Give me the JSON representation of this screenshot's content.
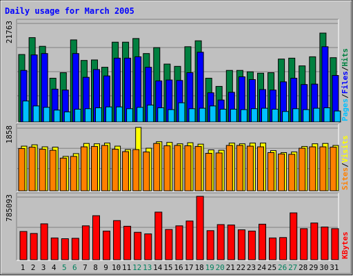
{
  "chart_data": {
    "type": "bar",
    "title": "Daily usage for March 2005",
    "categories": [
      "1",
      "2",
      "3",
      "4",
      "5",
      "6",
      "7",
      "8",
      "9",
      "10",
      "11",
      "12",
      "13",
      "14",
      "15",
      "16",
      "17",
      "18",
      "19",
      "20",
      "21",
      "22",
      "23",
      "24",
      "25",
      "26",
      "27",
      "28",
      "29",
      "30",
      "31"
    ],
    "weekend_days": [
      "5",
      "6",
      "12",
      "13",
      "19",
      "20",
      "26",
      "27"
    ],
    "panels": [
      {
        "id": "top",
        "y_max_label": "21763",
        "ylim": [
          0,
          21763
        ],
        "legend": [
          "Pages",
          "/",
          "Files",
          "/",
          "Hits"
        ],
        "series": [
          {
            "name": "Hits",
            "color": "#008040",
            "values": [
              14800,
              18500,
              16600,
              9600,
              10800,
              18000,
              13500,
              13600,
              12000,
              17500,
              17500,
              18300,
              15000,
              16300,
              12700,
              12200,
              16500,
              17800,
              9600,
              7800,
              11300,
              11300,
              11000,
              10700,
              10800,
              13800,
              14000,
              12300,
              14300,
              19500,
              14100
            ]
          },
          {
            "name": "Files",
            "color": "#0000ff",
            "values": [
              11300,
              14700,
              15000,
              7200,
              7000,
              15000,
              9800,
              11500,
              10100,
              14000,
              14000,
              14300,
              12000,
              9000,
              9200,
              9100,
              10800,
              15300,
              6400,
              4800,
              6500,
              9900,
              9300,
              7100,
              7000,
              8800,
              9600,
              8200,
              8300,
              16500,
              10200
            ]
          },
          {
            "name": "Pages",
            "color": "#00c0ff",
            "values": [
              4600,
              3500,
              3200,
              2600,
              2200,
              2800,
              2900,
              3100,
              3300,
              3300,
              2900,
              3200,
              3700,
              3100,
              2700,
              4200,
              2900,
              3000,
              3500,
              2800,
              2800,
              2700,
              2900,
              3000,
              2800,
              2300,
              2900,
              2700,
              3000,
              3100,
              2400
            ]
          }
        ]
      },
      {
        "id": "middle",
        "y_max_label": "1858",
        "ylim": [
          0,
          1858
        ],
        "legend": [
          "Sites",
          "/",
          "Visits"
        ],
        "series": [
          {
            "name": "Visits",
            "color": "#ffff00",
            "values": [
              1310,
              1350,
              1290,
              1280,
              1010,
              1090,
              1390,
              1380,
              1400,
              1310,
              1210,
              1858,
              1250,
              1440,
              1420,
              1380,
              1410,
              1370,
              1200,
              1190,
              1400,
              1380,
              1400,
              1400,
              1180,
              1120,
              1140,
              1300,
              1380,
              1390,
              1330
            ]
          },
          {
            "name": "Sites",
            "color": "#ff8000",
            "values": [
              1240,
              1280,
              1220,
              1190,
              960,
              1010,
              1290,
              1300,
              1330,
              1220,
              1150,
              1210,
              1140,
              1390,
              1320,
              1330,
              1320,
              1300,
              1100,
              1110,
              1330,
              1330,
              1310,
              1290,
              1120,
              1080,
              1070,
              1250,
              1290,
              1290,
              1280
            ]
          }
        ]
      },
      {
        "id": "bottom",
        "y_max_label": "785093",
        "ylim": [
          0,
          785093
        ],
        "legend": [
          "KBytes"
        ],
        "series": [
          {
            "name": "KBytes",
            "color": "#ff0000",
            "values": [
              350000,
              325000,
              445000,
              270000,
              260000,
              265000,
              420000,
              545000,
              355000,
              485000,
              415000,
              340000,
              320000,
              590000,
              375000,
              420000,
              480000,
              785093,
              360000,
              435000,
              430000,
              370000,
              355000,
              440000,
              270000,
              275000,
              580000,
              385000,
              455000,
              405000,
              385000
            ]
          }
        ]
      }
    ],
    "grid": true
  }
}
